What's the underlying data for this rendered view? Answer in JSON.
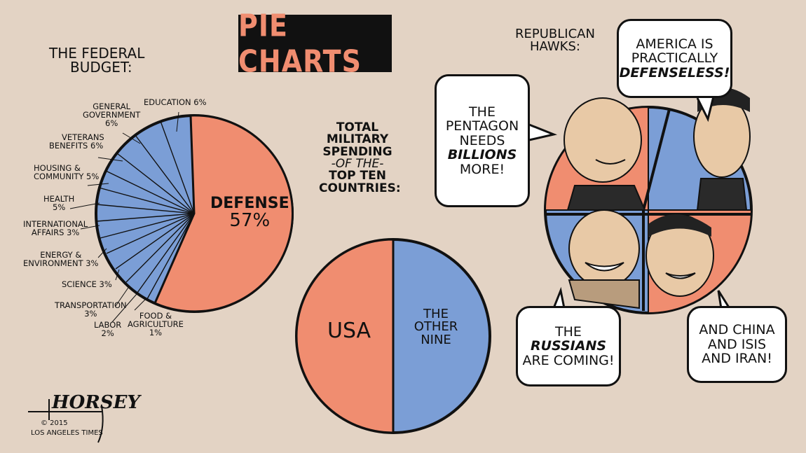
{
  "title": "PIE CHARTS",
  "colors": {
    "background": "#e3d3c4",
    "salmon": "#f08d70",
    "blue": "#7b9ed6",
    "ink": "#111111"
  },
  "federal_budget": {
    "heading_line1": "THE FEDERAL",
    "heading_line2": "BUDGET:",
    "defense_label": "DEFENSE",
    "defense_pct": "57%",
    "labels": {
      "education": "EDUCATION 6%",
      "general_gov_1": "GENERAL",
      "general_gov_2": "GOVERNMENT",
      "general_gov_3": "6%",
      "veterans_1": "VETERANS",
      "veterans_2": "BENEFITS 6%",
      "housing_1": "HOUSING &",
      "housing_2": "COMMUNITY 5%",
      "health_1": "HEALTH",
      "health_2": "5%",
      "intl_1": "INTERNATIONAL",
      "intl_2": "AFFAIRS 3%",
      "energy_1": "ENERGY &",
      "energy_2": "ENVIRONMENT 3%",
      "science": "SCIENCE 3%",
      "transport_1": "TRANSPORTATION",
      "transport_2": "3%",
      "labor_1": "LABOR",
      "labor_2": "2%",
      "food_1": "FOOD &",
      "food_2": "AGRICULTURE",
      "food_3": "1%"
    }
  },
  "military_spending": {
    "heading": [
      "TOTAL",
      "MILITARY",
      "SPENDING",
      "-OF THE-",
      "TOP TEN",
      "COUNTRIES:"
    ],
    "usa_label": "USA",
    "other_label": [
      "THE",
      "OTHER",
      "NINE"
    ]
  },
  "hawks": {
    "heading_line1": "REPUBLICAN",
    "heading_line2": "HAWKS:",
    "bubble_pentagon": [
      "THE",
      "PENTAGON",
      "NEEDS",
      "BILLIONS",
      "MORE!"
    ],
    "bubble_america": [
      "AMERICA IS",
      "PRACTICALLY",
      "DEFENSELESS!"
    ],
    "bubble_russians": [
      "THE",
      "RUSSIANS",
      "ARE COMING!"
    ],
    "bubble_china": [
      "AND CHINA",
      "AND ISIS",
      "AND IRAN!"
    ]
  },
  "signature": {
    "name": "HORSEY",
    "copyright": "© 2015",
    "publisher": "LOS ANGELES TIMES"
  }
}
